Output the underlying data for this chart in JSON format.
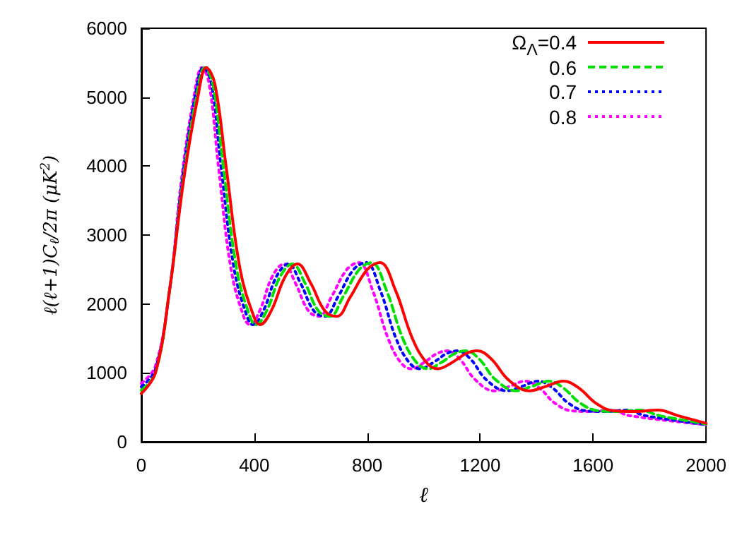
{
  "chart_data": {
    "type": "line",
    "xlabel": "ℓ",
    "ylabel": "ℓ(ℓ+1)C$_{ℓ}$/2π (μK$^{2}$)",
    "xlim": [
      0,
      2000
    ],
    "xticks": [
      0,
      400,
      800,
      1200,
      1600,
      2000
    ],
    "ylim": [
      0,
      6000
    ],
    "yticks": [
      0,
      1000,
      2000,
      3000,
      4000,
      5000,
      6000
    ],
    "grid": false,
    "legend": "top right",
    "marker": "none",
    "series": [
      {
        "name": "Ω$_{Λ}$=0.4",
        "color": "#ff0000",
        "line_style": "solid",
        "x": [
          0,
          50,
          100,
          150,
          200,
          230,
          260,
          300,
          350,
          400,
          420,
          460,
          510,
          553,
          600,
          650,
          692,
          740,
          800,
          845,
          900,
          960,
          1010,
          1050,
          1100,
          1150,
          1190,
          1240,
          1300,
          1375,
          1430,
          1495,
          1550,
          1610,
          1673,
          1750,
          1830,
          1900,
          2000
        ],
        "values": [
          700,
          1000,
          2200,
          3800,
          5000,
          5430,
          5200,
          4000,
          2500,
          1800,
          1700,
          1900,
          2400,
          2580,
          2300,
          1900,
          1820,
          2100,
          2500,
          2600,
          2200,
          1500,
          1150,
          1060,
          1150,
          1280,
          1320,
          1200,
          900,
          740,
          800,
          880,
          780,
          560,
          450,
          440,
          460,
          380,
          270
        ]
      },
      {
        "name": "0.6",
        "color": "#00e000",
        "line_style": "dashed",
        "x": [
          0,
          50,
          100,
          148,
          195,
          225,
          253,
          290,
          338,
          386,
          405,
          444,
          492,
          535,
          580,
          627,
          668,
          714,
          772,
          815,
          868,
          926,
          975,
          1015,
          1062,
          1110,
          1150,
          1197,
          1255,
          1330,
          1380,
          1445,
          1495,
          1555,
          1620,
          1690,
          1765,
          1835,
          2000
        ],
        "values": [
          750,
          1000,
          2200,
          3800,
          5000,
          5430,
          5200,
          4000,
          2500,
          1800,
          1700,
          1900,
          2400,
          2580,
          2300,
          1900,
          1820,
          2100,
          2500,
          2600,
          2200,
          1500,
          1150,
          1060,
          1150,
          1280,
          1320,
          1200,
          900,
          740,
          800,
          880,
          780,
          560,
          450,
          440,
          460,
          380,
          260
        ]
      },
      {
        "name": "0.7",
        "color": "#0000ff",
        "line_style": "dotted",
        "x": [
          0,
          50,
          100,
          145,
          190,
          220,
          248,
          282,
          329,
          376,
          395,
          432,
          479,
          520,
          564,
          611,
          650,
          696,
          752,
          795,
          846,
          902,
          949,
          987,
          1034,
          1081,
          1120,
          1166,
          1222,
          1295,
          1345,
          1405,
          1457,
          1513,
          1575,
          1645,
          1720,
          1785,
          2000
        ],
        "values": [
          800,
          1050,
          2200,
          3800,
          5000,
          5430,
          5200,
          4000,
          2500,
          1800,
          1700,
          1900,
          2400,
          2580,
          2300,
          1900,
          1820,
          2100,
          2500,
          2600,
          2200,
          1500,
          1150,
          1060,
          1150,
          1280,
          1320,
          1200,
          900,
          740,
          800,
          880,
          780,
          560,
          450,
          440,
          460,
          380,
          250
        ]
      },
      {
        "name": "0.8",
        "color": "#ff00ff",
        "line_style": "dotted",
        "x": [
          0,
          50,
          100,
          142,
          186,
          215,
          240,
          273,
          318,
          364,
          385,
          419,
          464,
          505,
          546,
          592,
          630,
          673,
          728,
          770,
          819,
          874,
          919,
          957,
          1001,
          1047,
          1085,
          1128,
          1183,
          1250,
          1301,
          1360,
          1410,
          1465,
          1525,
          1593,
          1665,
          1729,
          2000
        ],
        "values": [
          850,
          1100,
          2200,
          3800,
          5000,
          5430,
          5200,
          4000,
          2500,
          1800,
          1700,
          1900,
          2400,
          2580,
          2300,
          1900,
          1820,
          2100,
          2500,
          2600,
          2200,
          1500,
          1150,
          1060,
          1150,
          1280,
          1320,
          1200,
          900,
          740,
          800,
          880,
          780,
          560,
          450,
          440,
          460,
          380,
          250
        ]
      }
    ]
  }
}
